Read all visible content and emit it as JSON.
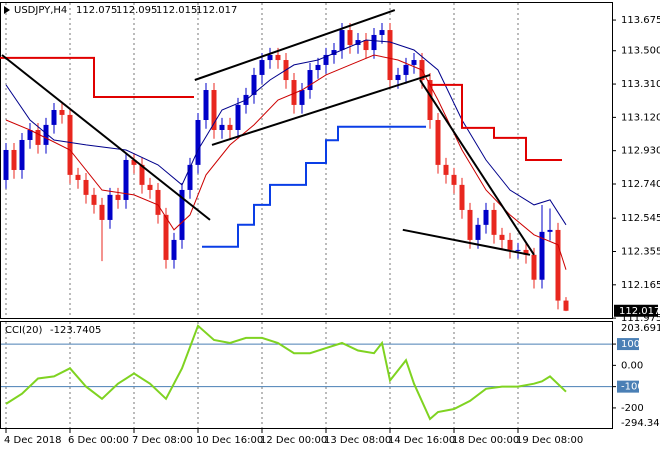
{
  "chart_data": [
    {
      "type": "candlestick",
      "title": "USDJPY,H4",
      "up_color": "#0000c8",
      "down_color": "#e8271f",
      "xlim": [
        -0.75,
        75.75
      ],
      "ylim": [
        111.97,
        113.778
      ],
      "xticks": [
        {
          "value": 0,
          "label": "4 Dec 2018"
        },
        {
          "value": 8,
          "label": "6 Dec 00:00"
        },
        {
          "value": 16,
          "label": "7 Dec 08:00"
        },
        {
          "value": 24,
          "label": "10 Dec 16:00"
        },
        {
          "value": 32,
          "label": "12 Dec 00:00"
        },
        {
          "value": 40,
          "label": "13 Dec 08:00"
        },
        {
          "value": 48,
          "label": "14 Dec 16:00"
        },
        {
          "value": 56,
          "label": "18 Dec 00:00"
        },
        {
          "value": 64,
          "label": "19 Dec 08:00"
        }
      ],
      "yticks": [
        113.675,
        {
          "value": 113.5,
          "label": "113.500"
        },
        {
          "value": 113.31,
          "label": "113.310"
        },
        {
          "value": 113.12,
          "label": "113.120"
        },
        {
          "value": 112.93,
          "label": "112.930"
        },
        {
          "value": 112.74,
          "label": "112.740"
        },
        112.545,
        112.355,
        112.165,
        111.975
      ],
      "candles": {
        "open": [
          112.763,
          112.934,
          112.82,
          112.991,
          113.048,
          112.963,
          113.077,
          113.162,
          113.134,
          112.792,
          112.763,
          112.678,
          112.621,
          112.535,
          112.678,
          112.649,
          112.877,
          112.849,
          112.735,
          112.706,
          112.564,
          112.307,
          112.421,
          112.706,
          112.849,
          113.105,
          113.276,
          113.048,
          113.077,
          113.048,
          113.191,
          113.248,
          113.362,
          113.447,
          113.476,
          113.447,
          113.333,
          113.191,
          113.276,
          113.39,
          113.419,
          113.476,
          113.504,
          113.618,
          113.533,
          113.561,
          113.504,
          113.59,
          113.618,
          113.333,
          113.362,
          113.419,
          113.447,
          113.333,
          113.105,
          112.849,
          112.792,
          112.735,
          112.592,
          112.421,
          112.507,
          112.592,
          112.45,
          112.421,
          112.364,
          112.364,
          112.336,
          112.194,
          112.467,
          112.478,
          112.075
        ],
        "high": [
          112.974,
          112.974,
          113.031,
          113.088,
          113.088,
          113.117,
          113.202,
          113.202,
          113.174,
          112.832,
          112.803,
          112.718,
          112.661,
          112.718,
          112.718,
          112.917,
          112.917,
          112.889,
          112.775,
          112.746,
          112.604,
          112.461,
          112.746,
          112.889,
          113.145,
          113.316,
          113.316,
          113.117,
          113.117,
          113.231,
          113.288,
          113.402,
          113.487,
          113.516,
          113.516,
          113.487,
          113.373,
          113.316,
          113.43,
          113.459,
          113.516,
          113.544,
          113.658,
          113.658,
          113.601,
          113.601,
          113.63,
          113.658,
          113.658,
          113.402,
          113.459,
          113.487,
          113.487,
          113.373,
          113.145,
          112.889,
          112.832,
          112.775,
          112.632,
          112.547,
          112.632,
          112.632,
          112.49,
          112.461,
          112.404,
          112.404,
          112.376,
          112.62,
          112.6,
          112.518,
          112.095
        ],
        "low": [
          112.713,
          112.77,
          112.77,
          112.941,
          112.913,
          112.913,
          113.027,
          113.084,
          112.742,
          112.713,
          112.628,
          112.571,
          112.3,
          112.485,
          112.599,
          112.599,
          112.799,
          112.685,
          112.656,
          112.514,
          112.257,
          112.257,
          112.371,
          112.656,
          112.799,
          113.055,
          112.998,
          112.998,
          112.998,
          112.998,
          113.141,
          113.198,
          113.312,
          113.397,
          113.397,
          113.283,
          113.141,
          113.141,
          113.226,
          113.34,
          113.369,
          113.426,
          113.454,
          113.483,
          113.483,
          113.454,
          113.454,
          113.54,
          113.283,
          113.283,
          113.312,
          113.369,
          113.283,
          113.055,
          112.799,
          112.742,
          112.685,
          112.542,
          112.371,
          112.371,
          112.457,
          112.4,
          112.371,
          112.314,
          112.314,
          112.286,
          112.144,
          112.144,
          112.417,
          112.025,
          112.015
        ],
        "close": [
          112.934,
          112.82,
          112.991,
          113.048,
          112.963,
          113.077,
          113.162,
          113.134,
          112.792,
          112.763,
          112.678,
          112.621,
          112.535,
          112.678,
          112.649,
          112.877,
          112.849,
          112.735,
          112.706,
          112.564,
          112.307,
          112.421,
          112.706,
          112.849,
          113.105,
          113.276,
          113.048,
          113.077,
          113.048,
          113.191,
          113.248,
          113.362,
          113.447,
          113.476,
          113.447,
          113.333,
          113.191,
          113.276,
          113.39,
          113.419,
          113.476,
          113.504,
          113.618,
          113.533,
          113.561,
          113.504,
          113.59,
          113.618,
          113.333,
          113.362,
          113.419,
          113.447,
          113.333,
          113.105,
          112.849,
          112.792,
          112.735,
          112.592,
          112.421,
          112.507,
          112.592,
          112.45,
          112.421,
          112.364,
          112.364,
          112.336,
          112.194,
          112.467,
          112.478,
          112.075,
          112.017
        ]
      },
      "overlays": [
        {
          "color": "#00008b",
          "width": 1,
          "x": [
            0,
            3,
            6,
            10,
            15,
            19,
            22,
            24,
            27,
            30,
            33,
            36,
            39,
            42,
            45,
            48,
            51,
            54,
            57,
            60,
            63,
            66,
            68,
            70
          ],
          "values": [
            113.305,
            113.105,
            112.991,
            112.963,
            112.934,
            112.849,
            112.735,
            112.934,
            113.162,
            113.219,
            113.333,
            113.419,
            113.447,
            113.504,
            113.561,
            113.55,
            113.504,
            113.39,
            113.105,
            112.877,
            112.706,
            112.621,
            112.649,
            112.507
          ]
        },
        {
          "color": "#cc0000",
          "width": 1,
          "x": [
            0,
            3,
            8,
            12,
            16,
            19,
            21,
            23,
            25,
            28,
            31,
            34,
            37,
            40,
            43,
            46,
            49,
            52,
            54,
            57,
            60,
            63,
            66,
            69,
            70
          ],
          "values": [
            113.105,
            113.048,
            112.934,
            112.706,
            112.678,
            112.621,
            112.479,
            112.564,
            112.792,
            112.963,
            113.077,
            113.219,
            113.276,
            113.362,
            113.419,
            113.476,
            113.447,
            113.39,
            113.219,
            112.934,
            112.706,
            112.564,
            112.45,
            112.393,
            112.251
          ]
        },
        {
          "color": "#e00000",
          "width": 2,
          "x": [
            -0.75,
            11,
            11,
            23.5,
            38,
            53,
            57,
            57,
            61,
            61,
            65,
            65,
            69.5
          ],
          "values": [
            113.459,
            113.459,
            113.236,
            113.236,
            null,
            113.305,
            113.305,
            113.06,
            113.06,
            113.003,
            113.003,
            112.877,
            112.877
          ]
        },
        {
          "color": "#0a3ee6",
          "width": 2,
          "x": [
            24.5,
            29,
            29,
            31,
            31,
            33,
            33,
            37.5,
            37.5,
            40,
            40,
            41.5,
            41.5,
            52.5
          ],
          "values": [
            112.382,
            112.382,
            112.507,
            112.507,
            112.621,
            112.621,
            112.735,
            112.735,
            112.86,
            112.86,
            112.99,
            112.99,
            113.066,
            113.066
          ]
        },
        {
          "color": "#000000",
          "width": 2,
          "x": [
            -0.5,
            25.5
          ],
          "values": [
            113.476,
            112.535
          ]
        },
        {
          "color": "#000000",
          "width": 2,
          "x": [
            23.6,
            48.6
          ],
          "values": [
            113.333,
            113.732
          ]
        },
        {
          "color": "#000000",
          "width": 2,
          "x": [
            25.75,
            53
          ],
          "values": [
            112.963,
            113.362
          ]
        },
        {
          "color": "#000000",
          "width": 2,
          "x": [
            51.75,
            66
          ],
          "values": [
            113.333,
            112.336
          ]
        },
        {
          "color": "#000000",
          "width": 2,
          "x": [
            49.6,
            65.5
          ],
          "values": [
            112.479,
            112.336
          ]
        }
      ]
    },
    {
      "type": "line",
      "title": "CCI(20)",
      "color": "#7fd321",
      "ylim": [
        -294.3498,
        203.6911
      ],
      "yticks": [
        100,
        {
          "value": 0,
          "label": "0.00"
        },
        -100,
        -200
      ],
      "levels": [
        100,
        -100
      ],
      "level_color": "#4a7fb5",
      "x": [
        0,
        2,
        4,
        6,
        8,
        10,
        12,
        14,
        16,
        18,
        20,
        22,
        24,
        26,
        28,
        30,
        32,
        34,
        36,
        38,
        40,
        42,
        44,
        46,
        47,
        48,
        50,
        51,
        53,
        54,
        56,
        58,
        60,
        62,
        64,
        66,
        67,
        68,
        70
      ],
      "values": [
        -181,
        -133,
        -62,
        -52,
        -14,
        -100,
        -157,
        -86,
        -38,
        -86,
        -157,
        -14,
        186,
        119,
        105,
        129,
        129,
        105,
        57,
        57,
        81,
        105,
        70,
        57,
        105,
        -71,
        24,
        -86,
        -252,
        -219,
        -205,
        -167,
        -110,
        -100,
        -100,
        -86,
        -75,
        -52,
        -123.7405
      ]
    }
  ]
}
